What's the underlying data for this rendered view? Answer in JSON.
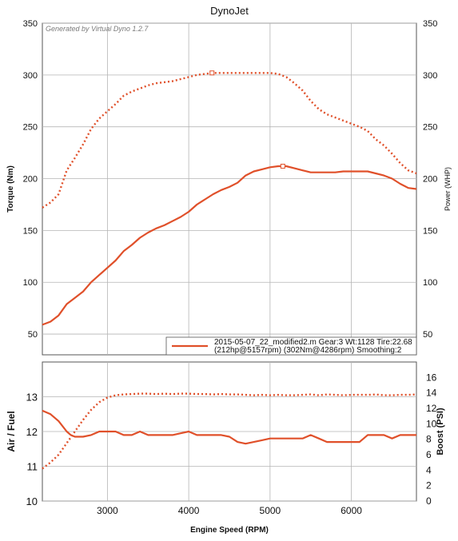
{
  "chart_data": [
    {
      "type": "line",
      "title": "DynoJet",
      "watermark": "Generated by Virtual Dyno 1.2.7",
      "xlabel": "",
      "ylabel": "Torque (Nm)",
      "y2label": "Power (WHP)",
      "xlim": [
        2200,
        6800
      ],
      "ylim": [
        30,
        350
      ],
      "y2lim": [
        30,
        350
      ],
      "x_ticks": [
        3000,
        4000,
        5000,
        6000
      ],
      "y_ticks": [
        50,
        100,
        150,
        200,
        250,
        300,
        350
      ],
      "y2_ticks": [
        50,
        100,
        150,
        200,
        250,
        300,
        350
      ],
      "grid": true,
      "legend": {
        "placement": "bottom-right",
        "line1": "2015-05-07_22_modified2.m Gear:3 Wt:1128 Tire:22.68",
        "line2": "(212hp@5157rpm) (302Nm@4286rpm) Smoothing:2"
      },
      "color": "#e0502a",
      "series": [
        {
          "role": "torque",
          "style": "dotted",
          "axis": "left",
          "peak_marker": [
            4286,
            302
          ],
          "x": [
            2200,
            2300,
            2400,
            2500,
            2600,
            2700,
            2800,
            2900,
            3000,
            3100,
            3200,
            3300,
            3400,
            3500,
            3600,
            3700,
            3800,
            3900,
            4000,
            4100,
            4200,
            4300,
            4400,
            4500,
            4600,
            4700,
            4800,
            4900,
            5000,
            5100,
            5200,
            5300,
            5400,
            5500,
            5600,
            5700,
            5800,
            5900,
            6000,
            6100,
            6200,
            6300,
            6400,
            6500,
            6600,
            6700,
            6800
          ],
          "values": [
            172,
            177,
            185,
            208,
            220,
            233,
            248,
            258,
            265,
            272,
            280,
            284,
            287,
            290,
            292,
            293,
            294,
            296,
            298,
            300,
            301,
            302,
            302,
            302,
            302,
            302,
            302,
            302,
            302,
            301,
            298,
            292,
            285,
            275,
            267,
            262,
            259,
            256,
            253,
            250,
            246,
            238,
            232,
            224,
            215,
            208,
            205
          ]
        },
        {
          "role": "power",
          "style": "solid",
          "axis": "right",
          "peak_marker": [
            5157,
            212
          ],
          "x": [
            2200,
            2300,
            2400,
            2500,
            2600,
            2700,
            2800,
            2900,
            3000,
            3100,
            3200,
            3300,
            3400,
            3500,
            3600,
            3700,
            3800,
            3900,
            4000,
            4100,
            4200,
            4300,
            4400,
            4500,
            4600,
            4700,
            4800,
            4900,
            5000,
            5100,
            5200,
            5300,
            5400,
            5500,
            5600,
            5700,
            5800,
            5900,
            6000,
            6100,
            6200,
            6300,
            6400,
            6500,
            6600,
            6700,
            6800
          ],
          "values": [
            59,
            62,
            68,
            79,
            85,
            91,
            100,
            107,
            114,
            121,
            130,
            136,
            143,
            148,
            152,
            155,
            159,
            163,
            168,
            175,
            180,
            185,
            189,
            192,
            196,
            203,
            207,
            209,
            211,
            212,
            212,
            210,
            208,
            206,
            206,
            206,
            206,
            207,
            207,
            207,
            207,
            205,
            203,
            200,
            195,
            191,
            190
          ]
        }
      ]
    },
    {
      "type": "line",
      "xlabel": "Engine Speed (RPM)",
      "ylabel": "Air / Fuel",
      "y2label": "Boost (PSI)",
      "xlim": [
        2200,
        6800
      ],
      "ylim": [
        10,
        14
      ],
      "y2lim": [
        0,
        18
      ],
      "x_ticks": [
        3000,
        4000,
        5000,
        6000
      ],
      "y_ticks": [
        10,
        11,
        12,
        13
      ],
      "y2_ticks": [
        0,
        2,
        4,
        6,
        8,
        10,
        12,
        14,
        16
      ],
      "grid": true,
      "color": "#e0502a",
      "series": [
        {
          "role": "air_fuel",
          "style": "solid",
          "axis": "left",
          "x": [
            2200,
            2300,
            2400,
            2500,
            2550,
            2600,
            2700,
            2800,
            2900,
            3000,
            3100,
            3200,
            3300,
            3400,
            3500,
            3600,
            3700,
            3800,
            3900,
            4000,
            4100,
            4200,
            4300,
            4400,
            4500,
            4600,
            4700,
            4800,
            4900,
            5000,
            5100,
            5200,
            5300,
            5400,
            5500,
            5600,
            5700,
            5800,
            5900,
            6000,
            6100,
            6200,
            6300,
            6400,
            6500,
            6600,
            6700,
            6800
          ],
          "values": [
            12.6,
            12.5,
            12.3,
            12.0,
            11.9,
            11.85,
            11.85,
            11.9,
            12.0,
            12.0,
            12.0,
            11.9,
            11.9,
            12.0,
            11.9,
            11.9,
            11.9,
            11.9,
            11.95,
            12.0,
            11.9,
            11.9,
            11.9,
            11.9,
            11.85,
            11.7,
            11.65,
            11.7,
            11.75,
            11.8,
            11.8,
            11.8,
            11.8,
            11.8,
            11.9,
            11.8,
            11.7,
            11.7,
            11.7,
            11.7,
            11.7,
            11.9,
            11.9,
            11.9,
            11.8,
            11.9,
            11.9,
            11.9
          ]
        },
        {
          "role": "boost",
          "style": "dotted",
          "axis": "right",
          "x": [
            2200,
            2300,
            2400,
            2500,
            2600,
            2700,
            2800,
            2900,
            3000,
            3100,
            3200,
            3300,
            3400,
            3500,
            3600,
            3700,
            3800,
            3900,
            4000,
            4100,
            4200,
            4300,
            4400,
            4500,
            4600,
            4700,
            4800,
            4900,
            5000,
            5100,
            5200,
            5300,
            5400,
            5500,
            5600,
            5700,
            5800,
            5900,
            6000,
            6100,
            6200,
            6300,
            6400,
            6500,
            6600,
            6700,
            6800
          ],
          "values": [
            4.2,
            5.0,
            6.0,
            7.5,
            9.0,
            10.5,
            11.8,
            12.8,
            13.4,
            13.7,
            13.8,
            13.85,
            13.9,
            13.9,
            13.85,
            13.9,
            13.85,
            13.9,
            13.9,
            13.85,
            13.85,
            13.8,
            13.85,
            13.8,
            13.8,
            13.75,
            13.7,
            13.75,
            13.7,
            13.75,
            13.7,
            13.7,
            13.75,
            13.8,
            13.7,
            13.8,
            13.75,
            13.7,
            13.75,
            13.75,
            13.75,
            13.8,
            13.7,
            13.7,
            13.75,
            13.75,
            13.8
          ]
        }
      ]
    }
  ]
}
